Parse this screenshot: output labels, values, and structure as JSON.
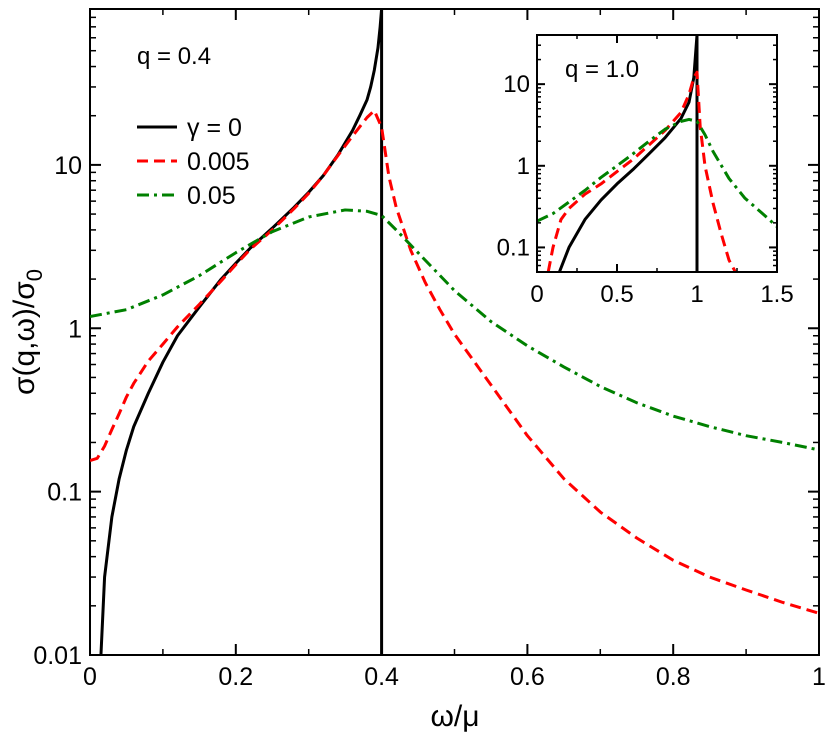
{
  "chart_data": [
    {
      "id": "main",
      "type": "line",
      "title": "",
      "xlabel": "ω/μ",
      "ylabel": "σ(q,ω)/σ",
      "ylabel_subscript": "0",
      "annotation": "q = 0.4",
      "xlim": [
        0,
        1
      ],
      "ylim": [
        0.01,
        90
      ],
      "yscale": "log",
      "grid": false,
      "legend_position": "upper-left",
      "xticks": [
        0,
        0.2,
        0.4,
        0.6,
        0.8,
        1
      ],
      "xtick_labels": [
        "0",
        "0.2",
        "0.4",
        "0.6",
        "0.8",
        "1"
      ],
      "yticks": [
        0.01,
        0.1,
        1,
        10
      ],
      "ytick_labels": [
        "0.01",
        "0.1",
        "1",
        "10"
      ],
      "series": [
        {
          "name": "γ = 0",
          "color": "#000000",
          "dash": "solid",
          "x": [
            0.015,
            0.02,
            0.03,
            0.04,
            0.05,
            0.06,
            0.08,
            0.1,
            0.12,
            0.15,
            0.18,
            0.2,
            0.22,
            0.25,
            0.28,
            0.3,
            0.32,
            0.34,
            0.36,
            0.37,
            0.38,
            0.385,
            0.39,
            0.395,
            0.398,
            0.4,
            0.4,
            0.4
          ],
          "y": [
            0.01,
            0.03,
            0.07,
            0.12,
            0.18,
            0.25,
            0.4,
            0.62,
            0.9,
            1.35,
            2.0,
            2.5,
            3.1,
            4.1,
            5.5,
            6.8,
            8.6,
            11.5,
            16.2,
            20.0,
            25.0,
            30.0,
            38.0,
            52.0,
            70.0,
            90.0,
            0.01,
            0.01
          ]
        },
        {
          "name": "0.005",
          "color": "#ff0000",
          "dash": "dashed",
          "x": [
            0,
            0.01,
            0.02,
            0.03,
            0.04,
            0.05,
            0.06,
            0.08,
            0.1,
            0.12,
            0.15,
            0.18,
            0.2,
            0.22,
            0.25,
            0.28,
            0.3,
            0.32,
            0.34,
            0.36,
            0.38,
            0.39,
            0.4,
            0.41,
            0.42,
            0.44,
            0.46,
            0.48,
            0.5,
            0.55,
            0.6,
            0.65,
            0.7,
            0.75,
            0.8,
            0.85,
            0.9,
            0.95,
            1.0
          ],
          "y": [
            0.155,
            0.16,
            0.19,
            0.24,
            0.3,
            0.38,
            0.46,
            0.63,
            0.8,
            1.02,
            1.4,
            1.95,
            2.45,
            3.05,
            4.0,
            5.4,
            6.7,
            8.6,
            11.4,
            15.0,
            19.5,
            21.5,
            17.0,
            8.5,
            5.5,
            3.0,
            1.9,
            1.3,
            0.92,
            0.45,
            0.22,
            0.12,
            0.075,
            0.052,
            0.038,
            0.03,
            0.025,
            0.021,
            0.018
          ]
        },
        {
          "name": "0.05",
          "color": "#008000",
          "dash": "dashdot",
          "x": [
            0,
            0.05,
            0.1,
            0.15,
            0.2,
            0.25,
            0.3,
            0.35,
            0.38,
            0.4,
            0.42,
            0.45,
            0.5,
            0.55,
            0.6,
            0.65,
            0.7,
            0.75,
            0.8,
            0.85,
            0.9,
            0.95,
            1.0
          ],
          "y": [
            1.18,
            1.3,
            1.6,
            2.1,
            2.9,
            3.9,
            4.8,
            5.3,
            5.2,
            4.9,
            4.0,
            2.9,
            1.7,
            1.1,
            0.78,
            0.58,
            0.44,
            0.35,
            0.29,
            0.25,
            0.22,
            0.2,
            0.18
          ]
        }
      ]
    },
    {
      "id": "inset",
      "type": "line",
      "title": "",
      "annotation": "q = 1.0",
      "xlim": [
        0,
        1.5
      ],
      "ylim": [
        0.05,
        40
      ],
      "yscale": "log",
      "grid": false,
      "xticks": [
        0,
        0.5,
        1,
        1.5
      ],
      "xtick_labels": [
        "0",
        "0.5",
        "1",
        "1.5"
      ],
      "yticks": [
        0.1,
        1,
        10
      ],
      "ytick_labels": [
        "0.1",
        "1",
        "10"
      ],
      "series": [
        {
          "color": "#000000",
          "dash": "solid",
          "x": [
            0.14,
            0.2,
            0.3,
            0.4,
            0.5,
            0.6,
            0.7,
            0.8,
            0.9,
            0.95,
            0.98,
            1.0,
            1.0,
            1.0
          ],
          "y": [
            0.05,
            0.1,
            0.22,
            0.38,
            0.6,
            0.9,
            1.4,
            2.2,
            3.8,
            6.0,
            12.0,
            40.0,
            40.0,
            0.05
          ]
        },
        {
          "color": "#ff0000",
          "dash": "dashed",
          "x": [
            0.07,
            0.1,
            0.15,
            0.2,
            0.3,
            0.4,
            0.5,
            0.6,
            0.7,
            0.8,
            0.9,
            0.95,
            0.98,
            1.0,
            1.02,
            1.05,
            1.1,
            1.15,
            1.2,
            1.24
          ],
          "y": [
            0.05,
            0.1,
            0.22,
            0.3,
            0.45,
            0.6,
            0.85,
            1.2,
            1.8,
            2.7,
            4.5,
            7.5,
            12.0,
            14.0,
            3.0,
            1.0,
            0.35,
            0.15,
            0.07,
            0.05
          ]
        },
        {
          "color": "#008000",
          "dash": "dashdot",
          "x": [
            0,
            0.1,
            0.2,
            0.3,
            0.4,
            0.5,
            0.6,
            0.7,
            0.8,
            0.9,
            0.95,
            1.0,
            1.05,
            1.1,
            1.2,
            1.3,
            1.4,
            1.5
          ],
          "y": [
            0.21,
            0.26,
            0.36,
            0.5,
            0.72,
            1.0,
            1.4,
            2.0,
            2.8,
            3.5,
            3.7,
            3.5,
            2.4,
            1.5,
            0.7,
            0.4,
            0.27,
            0.18
          ]
        }
      ]
    }
  ]
}
